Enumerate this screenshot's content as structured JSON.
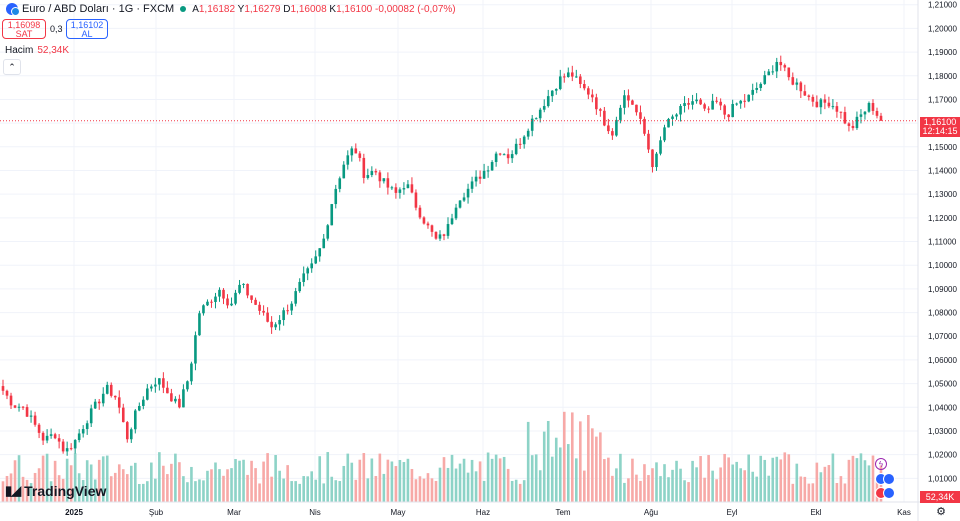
{
  "header": {
    "symbol_title": "Euro / ABD Doları · 1G · FXCM",
    "ohlc": {
      "a_label": "A",
      "a": "1,16182",
      "y_label": "Y",
      "y": "1,16279",
      "d_label": "D",
      "d": "1,16008",
      "k_label": "K",
      "k": "1,16100",
      "change": "-0,00082 (-0,07%)"
    }
  },
  "trade": {
    "sell_price": "1,16098",
    "sell_label": "SAT",
    "spread": "0,3",
    "buy_price": "1,16102",
    "buy_label": "AL"
  },
  "volume_legend": {
    "label": "Hacim",
    "value": "52,34K"
  },
  "price_tag": {
    "price": "1,16100",
    "countdown": "12:14:15"
  },
  "volume_tag": "52,34K",
  "logo_text": "TradingView",
  "icons": {
    "flag": "eur-usd-flag-icon",
    "collapse": "chevron-up-icon",
    "settings": "gear-icon",
    "logo": "tradingview-logo-icon"
  },
  "colors": {
    "up": "#089981",
    "down": "#f23645",
    "vol_up": "#8dd3c7",
    "vol_down": "#f7a9a7",
    "grid": "#f0f3fa",
    "accent": "#2962ff"
  },
  "chart_data": {
    "type": "candlestick",
    "title": "Euro / ABD Doları · 1G · FXCM",
    "y_ticks": [
      "1,21000",
      "1,20000",
      "1,19000",
      "1,18000",
      "1,17000",
      "1,16000",
      "1,15000",
      "1,14000",
      "1,13000",
      "1,12000",
      "1,11000",
      "1,10000",
      "1,09000",
      "1,08000",
      "1,07000",
      "1,06000",
      "1,05000",
      "1,04000",
      "1,03000",
      "1,02000",
      "1,01000"
    ],
    "ylim": [
      1.0,
      1.212
    ],
    "x_ticks": [
      "2025",
      "Şub",
      "Mar",
      "Nis",
      "May",
      "Haz",
      "Tem",
      "Ağu",
      "Eyl",
      "Ekl",
      "Kas"
    ],
    "close_path": [
      1.047,
      1.041,
      1.04,
      1.033,
      1.026,
      1.029,
      1.021,
      1.026,
      1.034,
      1.041,
      1.048,
      1.044,
      1.027,
      1.039,
      1.048,
      1.052,
      1.046,
      1.04,
      1.053,
      1.08,
      1.085,
      1.09,
      1.083,
      1.092,
      1.086,
      1.08,
      1.074,
      1.079,
      1.085,
      1.094,
      1.1,
      1.11,
      1.13,
      1.143,
      1.15,
      1.138,
      1.14,
      1.134,
      1.13,
      1.135,
      1.125,
      1.117,
      1.11,
      1.115,
      1.128,
      1.132,
      1.137,
      1.142,
      1.149,
      1.146,
      1.152,
      1.16,
      1.166,
      1.173,
      1.179,
      1.181,
      1.175,
      1.172,
      1.162,
      1.156,
      1.172,
      1.168,
      1.157,
      1.141,
      1.158,
      1.163,
      1.167,
      1.17,
      1.164,
      1.169,
      1.163,
      1.168,
      1.17,
      1.175,
      1.18,
      1.187,
      1.179,
      1.176,
      1.171,
      1.168,
      1.169,
      1.165,
      1.157,
      1.163,
      1.168,
      1.161
    ],
    "last_price": 1.161,
    "volume": {
      "last": "52,34K",
      "max_relative": 1.0
    }
  }
}
